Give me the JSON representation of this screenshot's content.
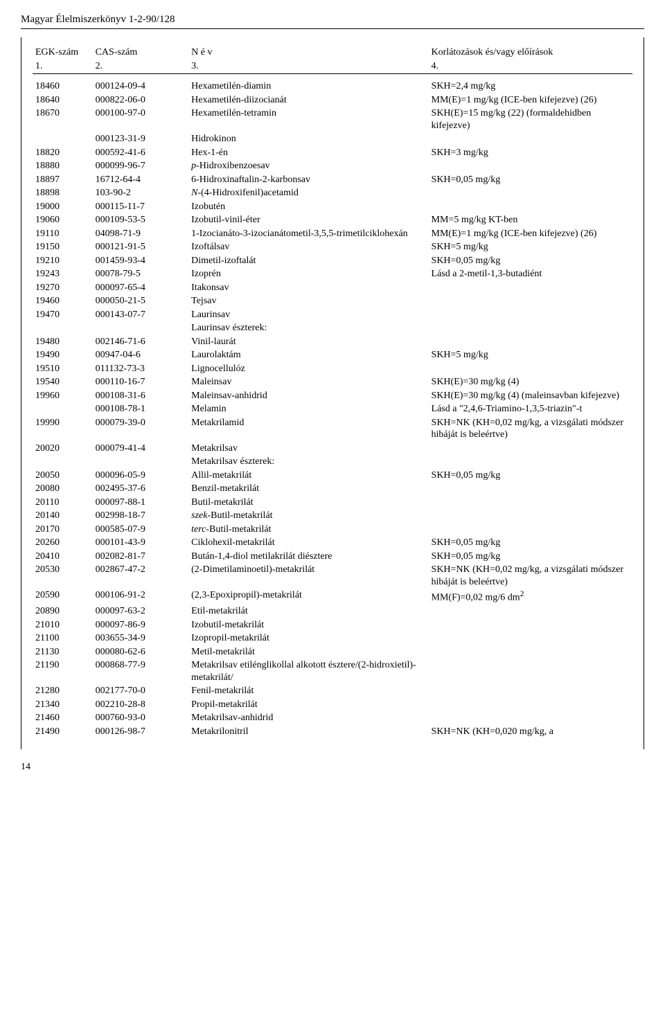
{
  "doc_title": "Magyar Élelmiszerkönyv 1-2-90/128",
  "page_number": "14",
  "table": {
    "headers": {
      "c1": "EGK-szám",
      "c2": "CAS-szám",
      "c3": "N é v",
      "c4": "Korlátozások és/vagy előírások"
    },
    "subheaders": {
      "c1": "1.",
      "c2": "2.",
      "c3": "3.",
      "c4": "4."
    },
    "rows": [
      {
        "c1": "18460",
        "c2": "000124-09-4",
        "c3": "Hexametilén-diamin",
        "c4": "SKH=2,4 mg/kg"
      },
      {
        "c1": "18640",
        "c2": "000822-06-0",
        "c3": "Hexametilén-diizocianát",
        "c4": "MM(E)=1 mg/kg  (ICE-ben kifejezve) (26)"
      },
      {
        "c1": "18670",
        "c2": "000100-97-0",
        "c3": "Hexametilén-tetramin",
        "c4": "SKH(E)=15 mg/kg (22) (formaldehidben kifejezve)"
      },
      {
        "c1": "",
        "c2": "000123-31-9",
        "c3": "Hidrokinon",
        "c4": ""
      },
      {
        "c1": "18820",
        "c2": "000592-41-6",
        "c3": "Hex-1-én",
        "c4": "SKH=3 mg/kg"
      },
      {
        "c1": "18880",
        "c2": "000099-96-7",
        "c3_html": "<span class='em'>p</span>-Hidroxibenzoesav",
        "c4": ""
      },
      {
        "c1": "18897",
        "c2": "16712-64-4",
        "c3": "6-Hidroxinaftalin-2-karbonsav",
        "c4": "SKH=0,05 mg/kg"
      },
      {
        "c1": "18898",
        "c2": "103-90-2",
        "c3_html": "<span class='em'>N</span>-(4-Hidroxifenil)acetamid",
        "c4": ""
      },
      {
        "c1": "19000",
        "c2": "000115-11-7",
        "c3": "Izobutén",
        "c4": ""
      },
      {
        "c1": "19060",
        "c2": "000109-53-5",
        "c3": "Izobutil-vinil-éter",
        "c4": "MM=5 mg/kg KT-ben"
      },
      {
        "c1": "19110",
        "c2": "04098-71-9",
        "c3": "1-Izocianáto-3-izocianátometil-3,5,5-trimetilciklohexán",
        "c4": "MM(E)=1 mg/kg  (ICE-ben kifejezve) (26)"
      },
      {
        "c1": "19150",
        "c2": "000121-91-5",
        "c3": "Izoftálsav",
        "c4": "SKH=5 mg/kg"
      },
      {
        "c1": "19210",
        "c2": "001459-93-4",
        "c3": "Dimetil-izoftalát",
        "c4": "SKH=0,05 mg/kg"
      },
      {
        "c1": "19243",
        "c2": "00078-79-5",
        "c3": "Izoprén",
        "c4": "Lásd a 2-metil-1,3-butadiént"
      },
      {
        "c1": "19270",
        "c2": "000097-65-4",
        "c3": "Itakonsav",
        "c4": ""
      },
      {
        "c1": "19460",
        "c2": "000050-21-5",
        "c3": "Tejsav",
        "c4": ""
      },
      {
        "c1": "19470",
        "c2": "000143-07-7",
        "c3": "Laurinsav",
        "c4": ""
      },
      {
        "c1": "",
        "c2": "",
        "c3": "Laurinsav észterek:",
        "c4": ""
      },
      {
        "c1": "19480",
        "c2": "002146-71-6",
        "c3": "Vinil-laurát",
        "c4": ""
      },
      {
        "c1": "19490",
        "c2": "00947-04-6",
        "c3": "Laurolaktám",
        "c4": "SKH=5 mg/kg"
      },
      {
        "c1": "19510",
        "c2": "011132-73-3",
        "c3": "Lignocellulóz",
        "c4": ""
      },
      {
        "c1": "19540",
        "c2": "000110-16-7",
        "c3": "Maleinsav",
        "c4": "SKH(E)=30 mg/kg (4)"
      },
      {
        "c1": "19960",
        "c2": "000108-31-6",
        "c3": "Maleinsav-anhidrid",
        "c4": "SKH(E)=30 mg/kg (4) (maleinsavban kifejezve)"
      },
      {
        "c1": "",
        "c2": "000108-78-1",
        "c3": "Melamin",
        "c4": "Lásd a \"2,4,6-Triamino-1,3,5-triazin\"-t"
      },
      {
        "c1": "19990",
        "c2": "000079-39-0",
        "c3": "Metakrilamid",
        "c4": "SKH=NK (KH=0,02 mg/kg, a vizsgálati módszer hibáját is beleértve)"
      },
      {
        "c1": "20020",
        "c2": "000079-41-4",
        "c3": "Metakrilsav",
        "c4": ""
      },
      {
        "c1": "",
        "c2": "",
        "c3": "Metakrilsav észterek:",
        "c4": ""
      },
      {
        "c1": "20050",
        "c2": "000096-05-9",
        "c3": "Allil-metakrilát",
        "c4": "SKH=0,05 mg/kg"
      },
      {
        "c1": "20080",
        "c2": "002495-37-6",
        "c3": "Benzil-metakrilát",
        "c4": ""
      },
      {
        "c1": "20110",
        "c2": "000097-88-1",
        "c3": "Butil-metakrilát",
        "c4": ""
      },
      {
        "c1": "20140",
        "c2": "002998-18-7",
        "c3_html": "<span class='em'>szek</span>-Butil-metakrilát",
        "c4": ""
      },
      {
        "c1": "20170",
        "c2": "000585-07-9",
        "c3_html": "<span class='em'>terc</span>-Butil-metakrilát",
        "c4": ""
      },
      {
        "c1": "20260",
        "c2": "000101-43-9",
        "c3": "Ciklohexil-metakrilát",
        "c4": " SKH=0,05 mg/kg"
      },
      {
        "c1": "20410",
        "c2": "002082-81-7",
        "c3": "Bután-1,4-diol metilakrilát diésztere",
        "c4": "SKH=0,05 mg/kg"
      },
      {
        "c1": "20530",
        "c2": "002867-47-2",
        "c3": "(2-Dimetilaminoetil)-metakrilát",
        "c4": "SKH=NK (KH=0,02 mg/kg, a vizsgálati módszer hibáját is beleértve)"
      },
      {
        "c1": "20590",
        "c2": "000106-91-2",
        "c3": "(2,3-Epoxipropil)-metakrilát",
        "c4_html": " MM(F)=0,02 mg/6 dm<sup>2</sup>"
      },
      {
        "c1": "20890",
        "c2": "000097-63-2",
        "c3": "Etil-metakrilát",
        "c4": ""
      },
      {
        "c1": "21010",
        "c2": "000097-86-9",
        "c3": "Izobutil-metakrilát",
        "c4": ""
      },
      {
        "c1": "21100",
        "c2": "003655-34-9",
        "c3": "Izopropil-metakrilát",
        "c4": ""
      },
      {
        "c1": "21130",
        "c2": "000080-62-6",
        "c3": "Metil-metakrilát",
        "c4": ""
      },
      {
        "c1": "21190",
        "c2": "000868-77-9",
        "c3": "Metakrilsav etilénglikollal alkotott észtere/(2-hidroxietil)-metakrilát/",
        "c4": ""
      },
      {
        "c1": "21280",
        "c2": "002177-70-0",
        "c3": "Fenil-metakrilát",
        "c4": ""
      },
      {
        "c1": "21340",
        "c2": "002210-28-8",
        "c3": "Propil-metakrilát",
        "c4": ""
      },
      {
        "c1": "21460",
        "c2": "000760-93-0",
        "c3": "Metakrilsav-anhidrid",
        "c4": ""
      },
      {
        "c1": "21490",
        "c2": "000126-98-7",
        "c3": "Metakrilonitril",
        "c4": "SKH=NK (KH=0,020 mg/kg,  a"
      }
    ]
  }
}
